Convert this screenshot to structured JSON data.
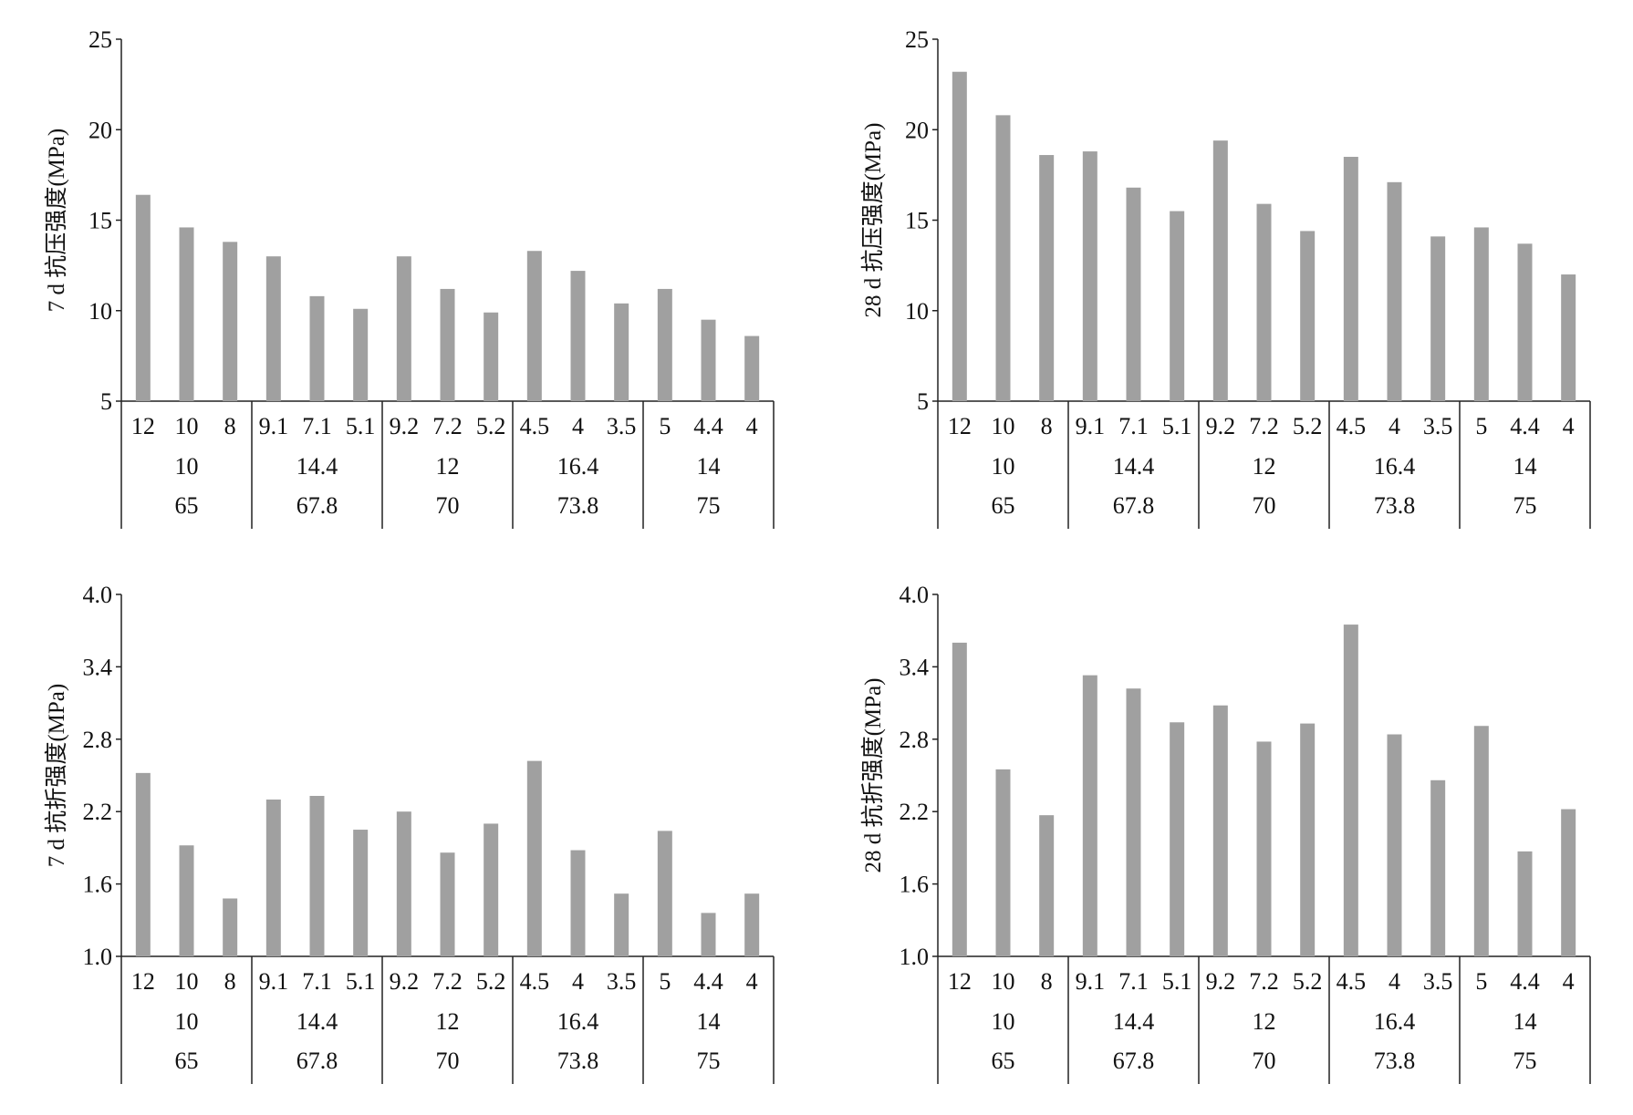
{
  "colors": {
    "bar": "#a0a0a0",
    "axis": "#222222"
  },
  "chart_data": [
    {
      "type": "bar",
      "ylabel": "7 d 抗压强度(MPa)",
      "ylim": [
        5,
        25
      ],
      "yticks": [
        "25",
        "20",
        "15",
        "10",
        "5"
      ],
      "categories": [
        "12",
        "10",
        "8",
        "9.1",
        "7.1",
        "5.1",
        "9.2",
        "7.2",
        "5.2",
        "4.5",
        "4",
        "3.5",
        "5",
        "4.4",
        "4"
      ],
      "groups_level2": [
        "10",
        "14.4",
        "12",
        "16.4",
        "14"
      ],
      "groups_level3": [
        "65",
        "67.8",
        "70",
        "73.8",
        "75"
      ],
      "values": [
        16.4,
        14.6,
        13.8,
        13.0,
        10.8,
        10.1,
        13.0,
        11.2,
        9.9,
        13.3,
        12.2,
        10.4,
        11.2,
        9.5,
        8.6
      ]
    },
    {
      "type": "bar",
      "ylabel": "28 d 抗压强度(MPa)",
      "ylim": [
        5,
        25
      ],
      "yticks": [
        "25",
        "20",
        "15",
        "10",
        "5"
      ],
      "categories": [
        "12",
        "10",
        "8",
        "9.1",
        "7.1",
        "5.1",
        "9.2",
        "7.2",
        "5.2",
        "4.5",
        "4",
        "3.5",
        "5",
        "4.4",
        "4"
      ],
      "groups_level2": [
        "10",
        "14.4",
        "12",
        "16.4",
        "14"
      ],
      "groups_level3": [
        "65",
        "67.8",
        "70",
        "73.8",
        "75"
      ],
      "values": [
        23.2,
        20.8,
        18.6,
        18.8,
        16.8,
        15.5,
        19.4,
        15.9,
        14.4,
        18.5,
        17.1,
        14.1,
        14.6,
        13.7,
        12.0
      ]
    },
    {
      "type": "bar",
      "ylabel": "7 d 抗折强度(MPa)",
      "ylim": [
        1.0,
        4.0
      ],
      "yticks": [
        "4.0",
        "3.4",
        "2.8",
        "2.2",
        "1.6",
        "1.0"
      ],
      "categories": [
        "12",
        "10",
        "8",
        "9.1",
        "7.1",
        "5.1",
        "9.2",
        "7.2",
        "5.2",
        "4.5",
        "4",
        "3.5",
        "5",
        "4.4",
        "4"
      ],
      "groups_level2": [
        "10",
        "14.4",
        "12",
        "16.4",
        "14"
      ],
      "groups_level3": [
        "65",
        "67.8",
        "70",
        "73.8",
        "75"
      ],
      "values": [
        2.52,
        1.92,
        1.48,
        2.3,
        2.33,
        2.05,
        2.2,
        1.86,
        2.1,
        2.62,
        1.88,
        1.52,
        2.04,
        1.36,
        1.52
      ]
    },
    {
      "type": "bar",
      "ylabel": "28 d 抗折强度(MPa)",
      "ylim": [
        1.0,
        4.0
      ],
      "yticks": [
        "4.0",
        "3.4",
        "2.8",
        "2.2",
        "1.6",
        "1.0"
      ],
      "categories": [
        "12",
        "10",
        "8",
        "9.1",
        "7.1",
        "5.1",
        "9.2",
        "7.2",
        "5.2",
        "4.5",
        "4",
        "3.5",
        "5",
        "4.4",
        "4"
      ],
      "groups_level2": [
        "10",
        "14.4",
        "12",
        "16.4",
        "14"
      ],
      "groups_level3": [
        "65",
        "67.8",
        "70",
        "73.8",
        "75"
      ],
      "values": [
        3.6,
        2.55,
        2.17,
        3.33,
        3.22,
        2.94,
        3.08,
        2.78,
        2.93,
        3.75,
        2.84,
        2.46,
        2.91,
        1.87,
        2.22
      ]
    }
  ]
}
